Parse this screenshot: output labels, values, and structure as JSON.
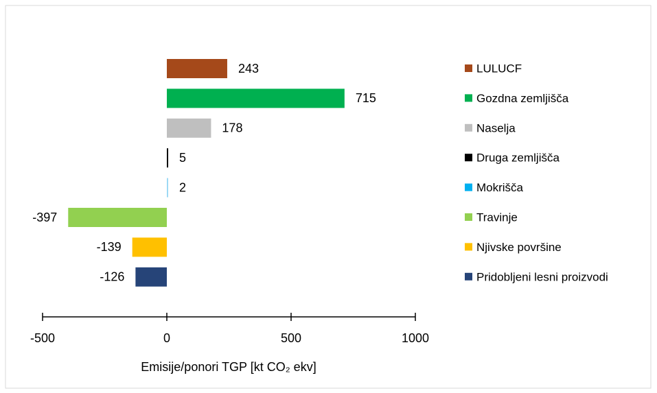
{
  "chart_data": {
    "type": "bar",
    "orientation": "horizontal",
    "categories": [
      "LULUCF",
      "Gozdna zemljišča",
      "Naselja",
      "Druga zemljišča",
      "Mokrišča",
      "Travinje",
      "Njivske površine",
      "Pridobljeni lesni proizvodi"
    ],
    "values": [
      243,
      715,
      178,
      5,
      2,
      -397,
      -139,
      -126
    ],
    "colors": [
      "#a5491a",
      "#00b050",
      "#bfbfbf",
      "#000000",
      "#9dd9f5",
      "#92d050",
      "#ffc000",
      "#264478"
    ],
    "legend_colors": [
      "#a5491a",
      "#00b050",
      "#bfbfbf",
      "#000000",
      "#00b0f0",
      "#92d050",
      "#ffc000",
      "#264478"
    ],
    "x_label": "Emisije/ponori TGP [kt CO₂ ekv]",
    "xlim": [
      -500,
      1000
    ],
    "xticks": [
      -500,
      0,
      500,
      1000
    ],
    "legend": "right"
  }
}
